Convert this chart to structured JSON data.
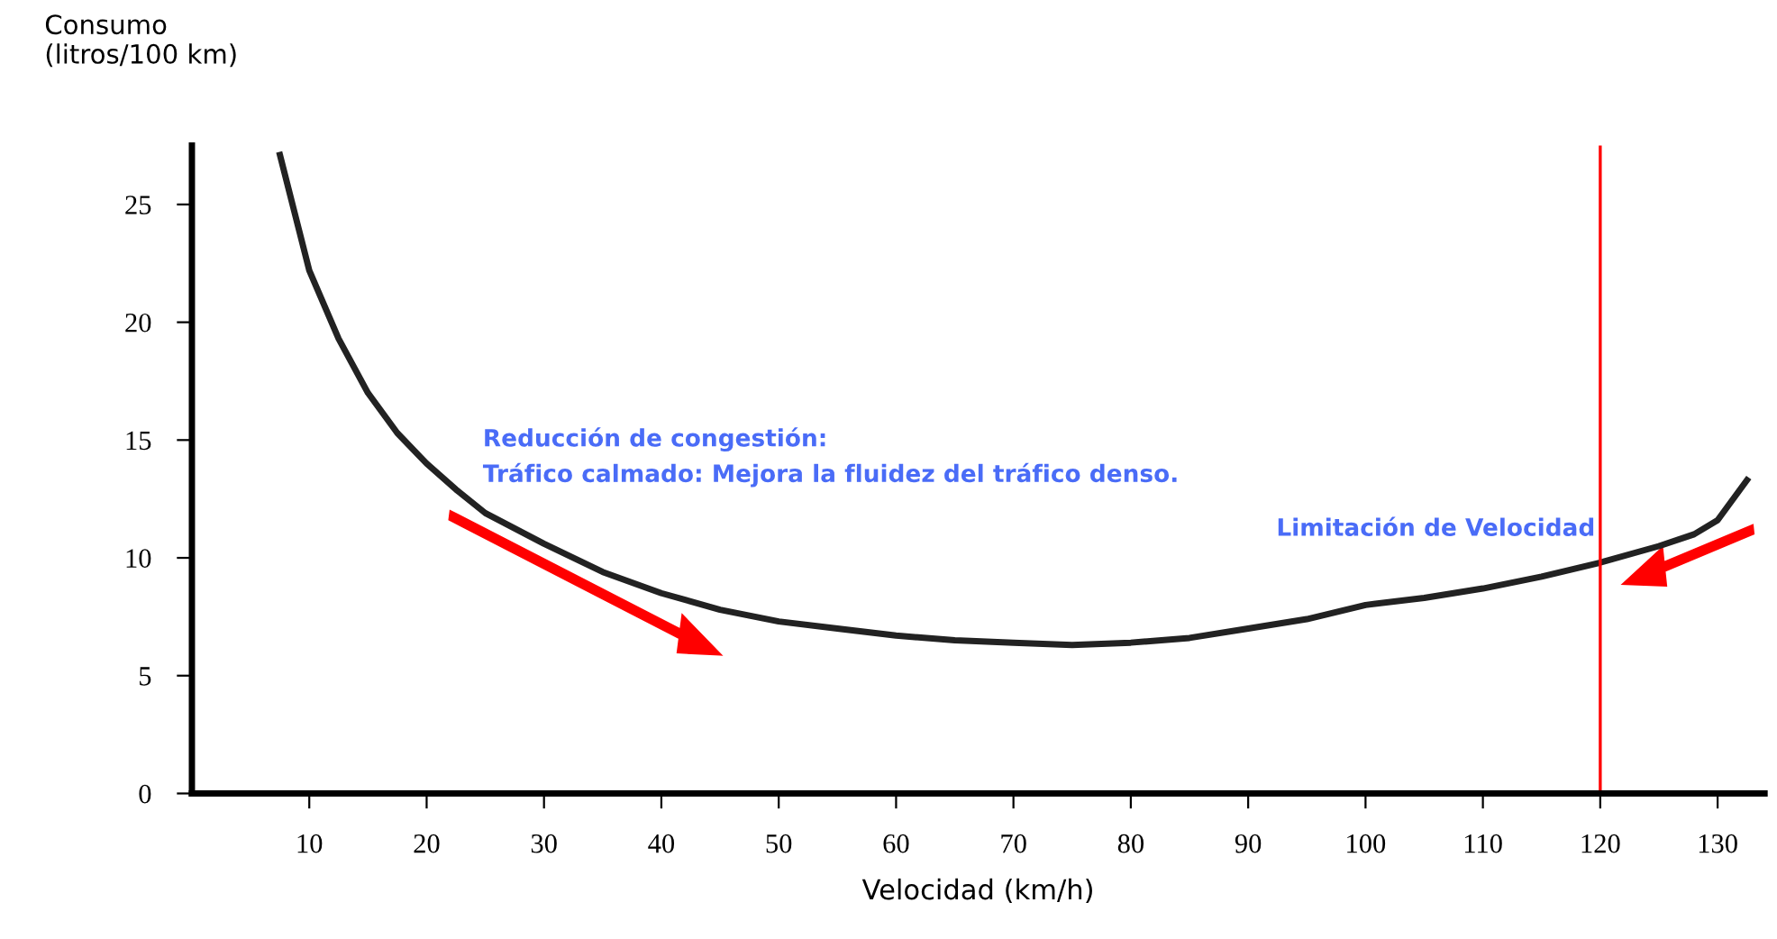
{
  "chart_data": {
    "type": "line",
    "ylabel": "Consumo\n(litros/100 km)",
    "xlabel": "Velocidad (km/h)",
    "series": [
      {
        "color": "#222222",
        "x": [
          7.5,
          10,
          12.5,
          15,
          17.5,
          20,
          22.5,
          25,
          30,
          35,
          40,
          45,
          50,
          55,
          60,
          65,
          70,
          75,
          80,
          85,
          90,
          95,
          100,
          105,
          110,
          115,
          120,
          125,
          128,
          130,
          132.5
        ],
        "values": [
          27.1,
          22.2,
          19.3,
          17.0,
          15.3,
          14.0,
          12.9,
          11.9,
          10.6,
          9.4,
          8.5,
          7.8,
          7.3,
          7.0,
          6.7,
          6.5,
          6.4,
          6.3,
          6.4,
          6.6,
          7.0,
          7.4,
          8.0,
          8.3,
          8.7,
          9.2,
          9.8,
          10.5,
          11.0,
          11.6,
          13.3
        ]
      }
    ],
    "xlim": [
      0,
      134
    ],
    "xticks": [
      10,
      20,
      30,
      40,
      50,
      60,
      70,
      80,
      90,
      100,
      110,
      120,
      130
    ],
    "ylim": [
      0,
      27.5
    ],
    "yticks": [
      0,
      5,
      10,
      15,
      20,
      25
    ],
    "ref_lines": [
      {
        "axis": "x",
        "value": 120,
        "label": "Limitación de Velocidad",
        "color": "#ff0000"
      }
    ],
    "annotations": [
      "Reducción de congestión:\nTráfico calmado: Mejora la fluidez del tráfico denso."
    ],
    "grid": false,
    "legend": false,
    "marker": "none",
    "line_style": "solid"
  }
}
